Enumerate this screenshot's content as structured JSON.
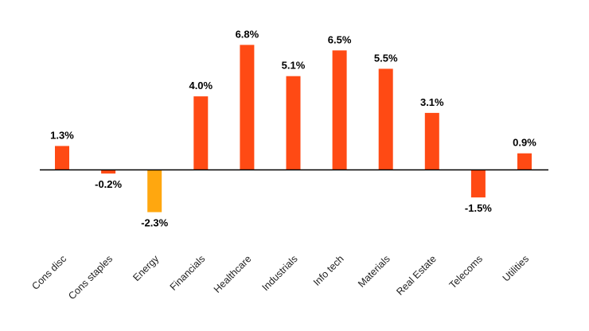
{
  "chart_data": {
    "type": "bar",
    "categories": [
      "Cons disc",
      "Cons staples",
      "Energy",
      "Financials",
      "Healthcare",
      "Industrials",
      "Info tech",
      "Materials",
      "Real Estate",
      "Telecoms",
      "Utilities"
    ],
    "values": [
      1.3,
      -0.2,
      -2.3,
      4.0,
      6.8,
      5.1,
      6.5,
      5.5,
      3.1,
      -1.5,
      0.9
    ],
    "value_labels": [
      "1.3%",
      "-0.2%",
      "-2.3%",
      "4.0%",
      "6.8%",
      "5.1%",
      "6.5%",
      "5.5%",
      "3.1%",
      "-1.5%",
      "0.9%"
    ],
    "bar_colors": [
      "#ff4a14",
      "#ff4a14",
      "#ffa70f",
      "#ff4a14",
      "#ff4a14",
      "#ff4a14",
      "#ff4a14",
      "#ff4a14",
      "#ff4a14",
      "#ff4a14",
      "#ff4a14"
    ],
    "title": "",
    "xlabel": "",
    "ylabel": "",
    "ylim": [
      -3.0,
      7.5
    ],
    "grid": false,
    "zero_line": true,
    "value_unit": "%"
  }
}
